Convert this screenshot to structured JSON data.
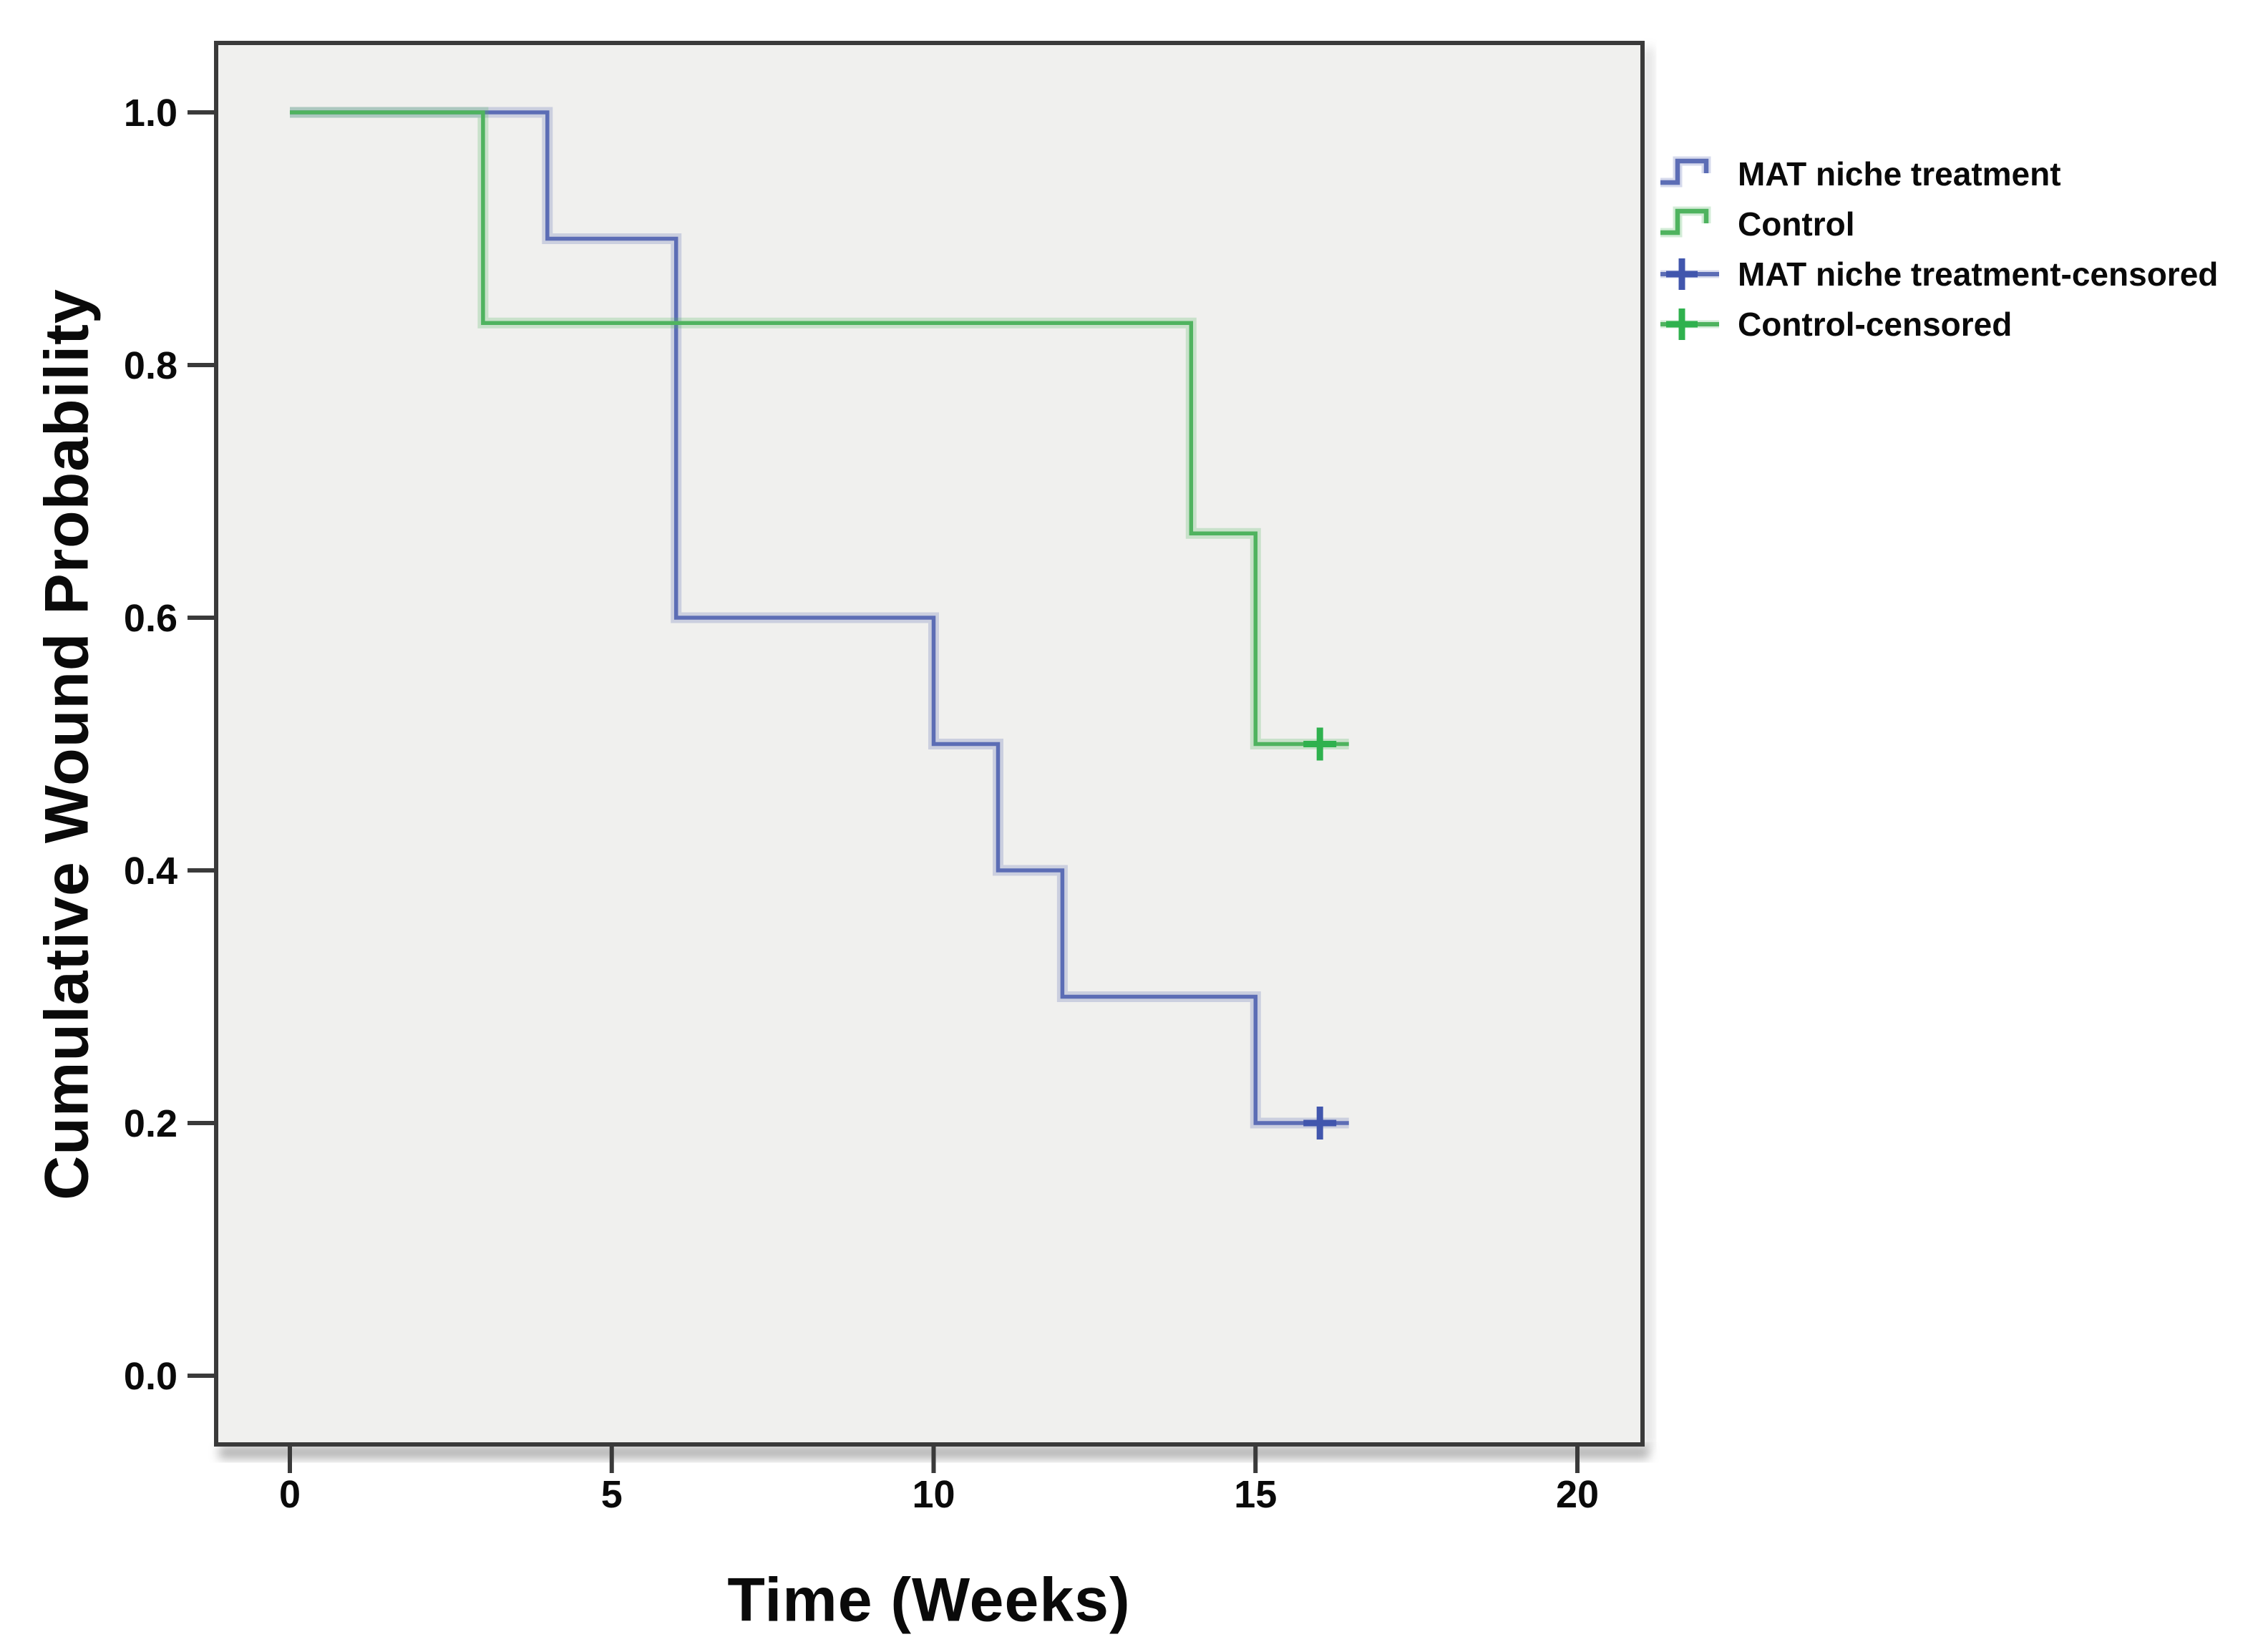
{
  "figure": {
    "background": "#ffffff",
    "plot_background": "#f0f0ee",
    "frame_color": "#3a3a3a",
    "tick_color": "#3a3a3a",
    "text_color": "#0a0a0a"
  },
  "chart_data": {
    "type": "line",
    "subtype": "kaplan_meier_step_function",
    "title": "",
    "xlabel": "Time (Weeks)",
    "ylabel": "Cumulative Wound Probability",
    "xlim": [
      -1.15,
      21.0
    ],
    "ylim": [
      -0.055,
      1.055
    ],
    "grid": false,
    "x_ticks": {
      "values": [
        0,
        5,
        10,
        15,
        20
      ],
      "labels": [
        "0",
        "5",
        "10",
        "15",
        "20"
      ]
    },
    "y_ticks": {
      "values": [
        1.0,
        0.8,
        0.6,
        0.4,
        0.2,
        0.0
      ],
      "labels": [
        "1.0",
        "0.8",
        "0.6",
        "0.4",
        "0.2",
        "0.0"
      ]
    },
    "legend_position": "outside-top-right",
    "series": [
      {
        "name": "MAT niche treatment",
        "color": "#5c6db5",
        "censor_color": "#4156ad",
        "points": [
          [
            0,
            1.0
          ],
          [
            4,
            1.0
          ],
          [
            4,
            0.9
          ],
          [
            6,
            0.9
          ],
          [
            6,
            0.6
          ],
          [
            10,
            0.6
          ],
          [
            10,
            0.5
          ],
          [
            11,
            0.5
          ],
          [
            11,
            0.4
          ],
          [
            12,
            0.4
          ],
          [
            12,
            0.3
          ],
          [
            15,
            0.3
          ],
          [
            15,
            0.2
          ],
          [
            16.45,
            0.2
          ]
        ],
        "censored_points": [
          [
            16,
            0.2
          ]
        ]
      },
      {
        "name": "Control",
        "color": "#4fb35f",
        "censor_color": "#2fb14e",
        "points": [
          [
            0,
            1.0
          ],
          [
            3,
            1.0
          ],
          [
            3,
            0.8333
          ],
          [
            14,
            0.8333
          ],
          [
            14,
            0.6667
          ],
          [
            15,
            0.6667
          ],
          [
            15,
            0.5
          ],
          [
            16.45,
            0.5
          ]
        ],
        "censored_points": [
          [
            16,
            0.5
          ]
        ]
      }
    ],
    "legend": [
      {
        "label": "MAT niche treatment",
        "marker": "step",
        "color": "#5c6db5",
        "cross_color": "#5c6db5"
      },
      {
        "label": "Control",
        "marker": "step",
        "color": "#4fb35f",
        "cross_color": "#4fb35f"
      },
      {
        "label": "MAT niche treatment-censored",
        "marker": "plus",
        "color": "#5c6db5",
        "cross_color": "#4156ad"
      },
      {
        "label": "Control-censored",
        "marker": "plus",
        "color": "#4fb35f",
        "cross_color": "#2fb14e"
      }
    ]
  }
}
